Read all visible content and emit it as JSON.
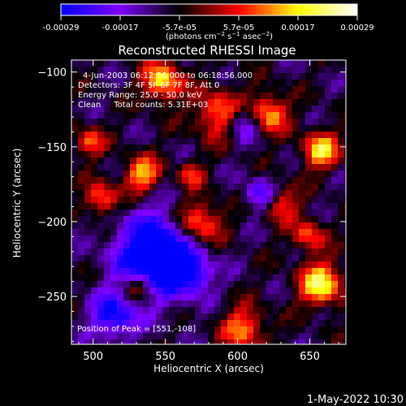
{
  "chart_data": {
    "type": "heatmap",
    "title": "Reconstructed RHESSI Image",
    "xlabel": "Heliocentric X (arcsec)",
    "ylabel": "Heliocentric Y (arcsec)",
    "xlim": [
      485,
      675
    ],
    "ylim": [
      -282,
      -92
    ],
    "xticks": [
      500,
      550,
      600,
      650
    ],
    "yticks": [
      -100,
      -150,
      -200,
      -250
    ],
    "colorbar": {
      "ticks": [
        "-0.00029",
        "-0.00017",
        "-5.7e-05",
        "5.7e-05",
        "0.00017",
        "0.00029"
      ],
      "unit_label": "(photons cm-2 s-1 asec-2)",
      "colors": [
        "#0000ff",
        "#7f00ff",
        "#000000",
        "#ff0000",
        "#ffff00",
        "#ffffff"
      ]
    },
    "annotations": [
      "4-Jun-2003 06:12:56.000 to 06:18:56.000",
      "Detectors: 3F 4F 5F 6F 7F 8F, Att 0",
      "Energy Range: 25.0 - 50.0 keV",
      "Clean     Total counts: 5.31E+03",
      "Position of Peak = [551,-108]"
    ],
    "grid": false
  },
  "footer": {
    "date_stamp": "1-May-2022 10:30"
  }
}
